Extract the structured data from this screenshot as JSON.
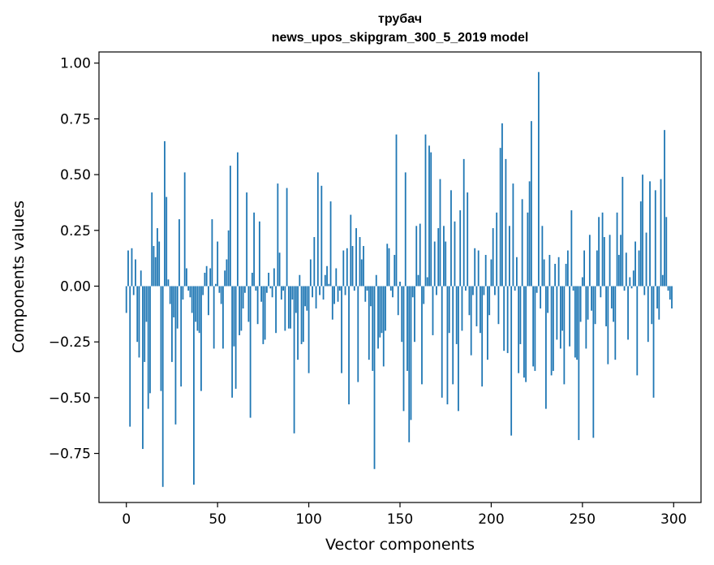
{
  "chart_data": {
    "type": "bar",
    "title": "трубач",
    "subtitle": "news_upos_skipgram_300_5_2019 model",
    "xlabel": "Vector components",
    "ylabel": "Components values",
    "xlim": [
      -15,
      315
    ],
    "ylim": [
      -0.97,
      1.05
    ],
    "xticks": [
      0,
      50,
      100,
      150,
      200,
      250,
      300
    ],
    "yticks": [
      -0.75,
      -0.5,
      -0.25,
      0.0,
      0.25,
      0.5,
      0.75,
      1.0
    ],
    "ytick_labels": [
      "−0.75",
      "−0.50",
      "−0.25",
      "0.00",
      "0.25",
      "0.50",
      "0.75",
      "1.00"
    ],
    "bar_color": "#1f77b4",
    "x_start": 0,
    "values": [
      -0.12,
      0.16,
      -0.63,
      0.17,
      -0.04,
      0.12,
      -0.25,
      -0.32,
      0.07,
      -0.73,
      -0.34,
      -0.16,
      -0.55,
      -0.48,
      0.42,
      0.18,
      0.13,
      0.26,
      0.2,
      -0.47,
      -0.9,
      0.65,
      0.4,
      0.03,
      -0.08,
      -0.34,
      -0.14,
      -0.62,
      -0.19,
      0.3,
      -0.45,
      -0.06,
      0.51,
      0.08,
      -0.02,
      -0.05,
      -0.12,
      -0.89,
      -0.16,
      -0.2,
      -0.21,
      -0.47,
      -0.04,
      0.06,
      0.09,
      -0.13,
      0.08,
      0.3,
      -0.28,
      0.01,
      0.2,
      -0.03,
      -0.08,
      -0.28,
      0.07,
      0.12,
      0.25,
      0.54,
      -0.5,
      -0.27,
      -0.46,
      0.6,
      -0.22,
      -0.2,
      -0.1,
      -0.03,
      0.42,
      -0.16,
      -0.59,
      0.06,
      0.33,
      -0.02,
      -0.17,
      0.29,
      -0.07,
      -0.26,
      -0.24,
      -0.03,
      0.06,
      -0.01,
      -0.05,
      0.08,
      -0.21,
      0.46,
      0.15,
      -0.06,
      -0.02,
      -0.2,
      0.44,
      -0.19,
      -0.19,
      -0.06,
      -0.66,
      -0.12,
      -0.33,
      0.05,
      -0.26,
      -0.25,
      -0.09,
      -0.11,
      -0.39,
      0.12,
      -0.05,
      0.22,
      -0.1,
      0.51,
      -0.04,
      0.45,
      -0.06,
      0.05,
      0.09,
      0.01,
      0.38,
      -0.15,
      -0.08,
      0.08,
      -0.07,
      -0.02,
      -0.39,
      0.16,
      -0.04,
      0.17,
      -0.53,
      0.32,
      0.18,
      -0.02,
      0.26,
      -0.43,
      0.22,
      0.12,
      0.18,
      -0.07,
      -0.02,
      -0.33,
      -0.09,
      -0.38,
      -0.82,
      0.05,
      -0.28,
      -0.23,
      -0.21,
      -0.36,
      -0.2,
      0.19,
      0.17,
      -0.02,
      -0.05,
      0.14,
      0.68,
      -0.13,
      0.02,
      -0.25,
      -0.56,
      0.51,
      -0.38,
      -0.7,
      -0.6,
      -0.05,
      -0.25,
      0.27,
      0.05,
      0.28,
      -0.44,
      -0.08,
      0.68,
      0.04,
      0.63,
      0.6,
      -0.22,
      0.2,
      -0.04,
      0.26,
      0.48,
      -0.5,
      0.27,
      0.2,
      -0.53,
      -0.21,
      0.43,
      -0.44,
      0.29,
      -0.26,
      -0.56,
      0.34,
      -0.2,
      0.57,
      -0.02,
      0.42,
      -0.13,
      -0.31,
      -0.04,
      0.17,
      -0.18,
      0.16,
      -0.21,
      -0.45,
      -0.04,
      0.14,
      -0.33,
      -0.13,
      0.12,
      0.26,
      -0.04,
      0.33,
      -0.17,
      0.62,
      0.73,
      -0.29,
      0.57,
      -0.3,
      0.27,
      -0.67,
      0.46,
      -0.02,
      0.13,
      -0.39,
      -0.26,
      0.39,
      -0.41,
      -0.43,
      0.33,
      0.47,
      0.74,
      -0.36,
      -0.38,
      -0.03,
      0.96,
      -0.1,
      0.27,
      0.12,
      -0.55,
      -0.12,
      0.14,
      -0.4,
      -0.38,
      0.1,
      -0.24,
      0.13,
      -0.28,
      -0.2,
      -0.44,
      0.1,
      0.16,
      -0.27,
      0.34,
      -0.02,
      -0.32,
      -0.33,
      -0.69,
      -0.16,
      0.04,
      0.16,
      -0.28,
      -0.15,
      0.23,
      -0.11,
      -0.68,
      -0.17,
      0.16,
      0.31,
      -0.05,
      0.33,
      0.22,
      -0.18,
      -0.35,
      0.23,
      -0.1,
      -0.16,
      -0.33,
      0.33,
      0.14,
      0.23,
      0.49,
      -0.02,
      0.15,
      -0.24,
      0.04,
      -0.01,
      0.07,
      0.2,
      -0.4,
      0.16,
      0.38,
      0.5,
      -0.04,
      0.24,
      -0.25,
      0.47,
      -0.17,
      -0.5,
      0.43,
      -0.1,
      -0.15,
      0.48,
      0.05,
      0.7,
      0.31,
      -0.02,
      -0.06,
      -0.1
    ]
  }
}
